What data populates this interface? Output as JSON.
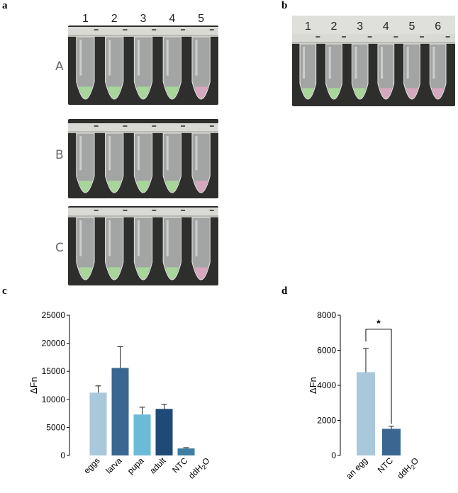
{
  "panels": {
    "a": {
      "letter": "a",
      "columns": [
        "1",
        "2",
        "3",
        "4",
        "5"
      ],
      "rows": [
        {
          "label": "A",
          "tube_colors": [
            "green",
            "green",
            "green",
            "green",
            "pink"
          ]
        },
        {
          "label": "B",
          "tube_colors": [
            "green",
            "green",
            "green",
            "green",
            "pink"
          ]
        },
        {
          "label": "C",
          "tube_colors": [
            "green",
            "green",
            "green",
            "green",
            "pink"
          ]
        }
      ]
    },
    "b": {
      "letter": "b",
      "columns": [
        "1",
        "2",
        "3",
        "4",
        "5",
        "6"
      ],
      "tube_colors": [
        "green",
        "green",
        "green",
        "pink",
        "pink",
        "pink"
      ]
    },
    "c": {
      "letter": "c"
    },
    "d": {
      "letter": "d"
    }
  },
  "colors": {
    "green": "#a8d59a",
    "pink": "#d6a8bd",
    "photo_bg": "#2e2f2c"
  },
  "chart_data": [
    {
      "type": "bar",
      "categories": [
        "eggs",
        "larva",
        "pupa",
        "adult",
        "NTC",
        "ddH2O"
      ],
      "values": [
        11200,
        15600,
        7300,
        8300,
        1250,
        0
      ],
      "errors": [
        1200,
        3800,
        1300,
        800,
        150,
        0
      ],
      "colors": [
        "#a9c8db",
        "#3a6691",
        "#6bbad8",
        "#1f4a77",
        "#3e7ea3",
        "#888888"
      ],
      "title": "",
      "xlabel": "",
      "ylabel": "ΔFn",
      "ylim": [
        0,
        25000
      ],
      "yticks": [
        "0",
        "5000",
        "10000",
        "15000",
        "20000",
        "25000"
      ],
      "grid": false
    },
    {
      "type": "bar",
      "categories": [
        "an egg",
        "NTC",
        "ddH2O"
      ],
      "values": [
        4750,
        1520,
        0
      ],
      "errors": [
        1350,
        150,
        0
      ],
      "colors": [
        "#a9c8db",
        "#3a6691",
        "#888888"
      ],
      "title": "",
      "xlabel": "",
      "ylabel": "ΔFn",
      "ylim": [
        0,
        8000
      ],
      "yticks": [
        "0",
        "2000",
        "4000",
        "6000",
        "8000"
      ],
      "annotation": "*",
      "grid": false
    }
  ]
}
